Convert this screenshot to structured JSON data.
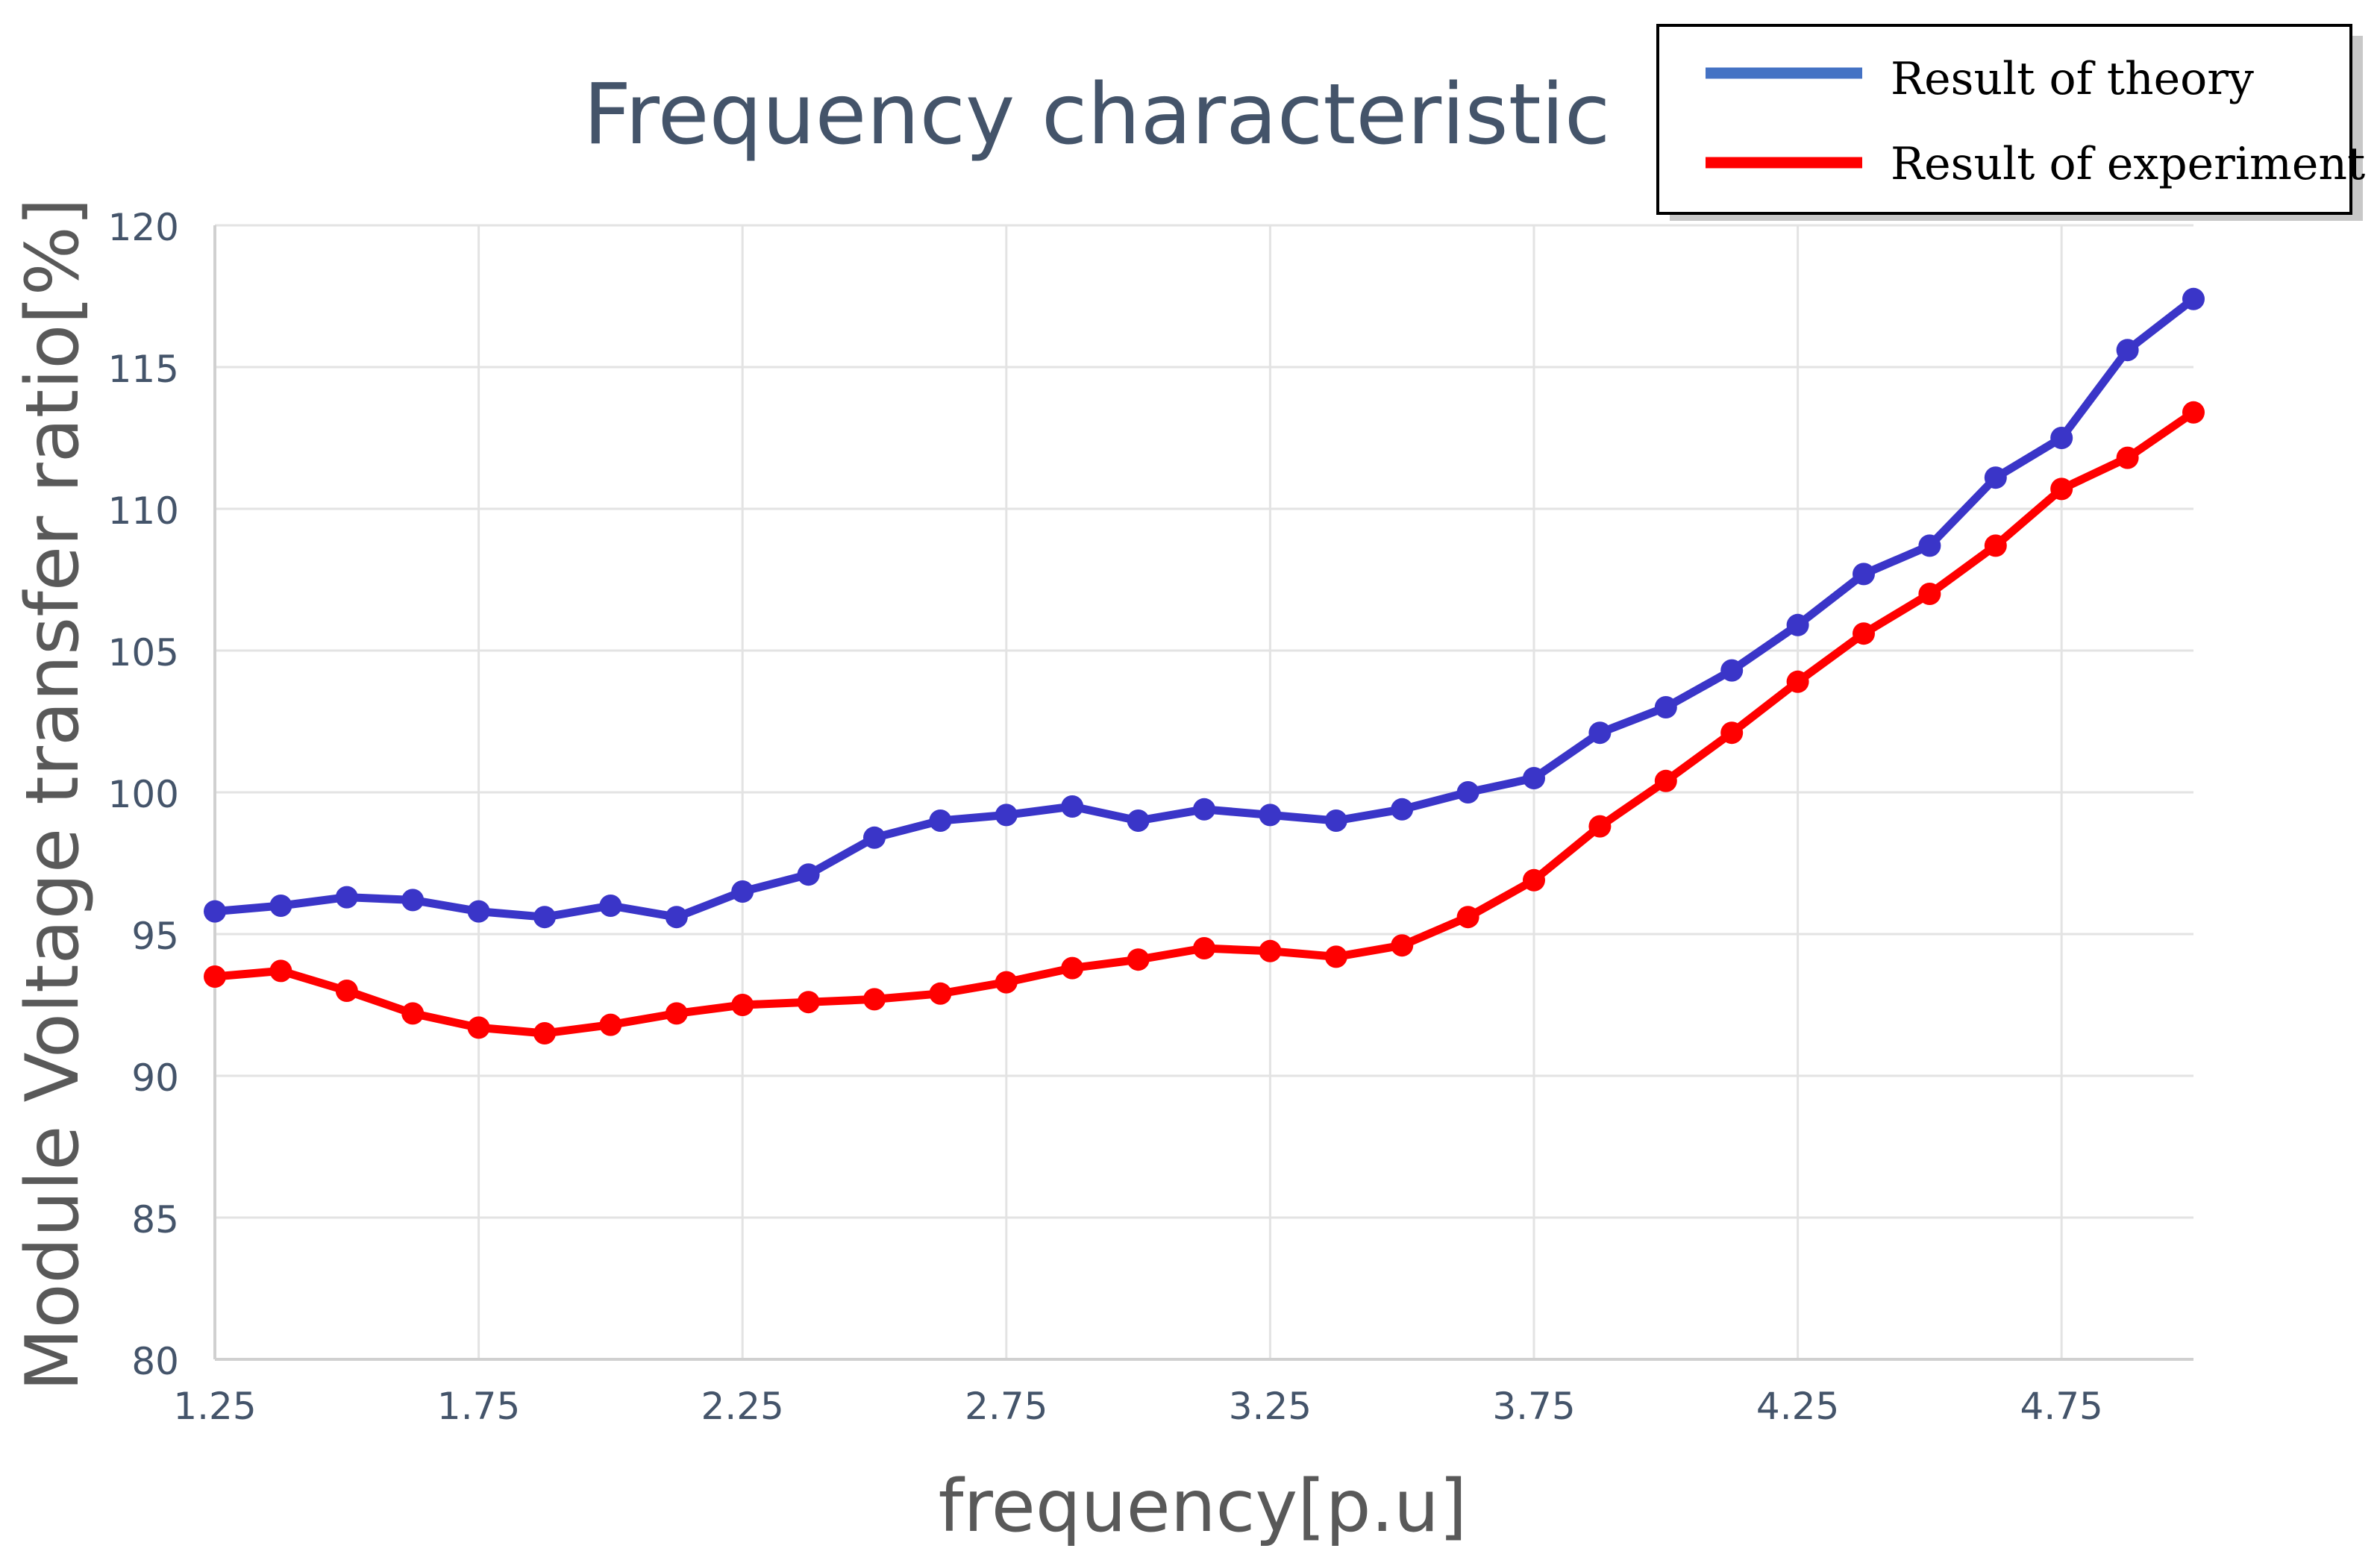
{
  "chart_data": {
    "type": "line",
    "title": "Frequency characteristic",
    "xlabel": "frequency[p.u]",
    "ylabel": "Module Voltage transfer ratio[%]",
    "xlim": [
      1.25,
      5.0
    ],
    "ylim": [
      80,
      120
    ],
    "x_ticks": [
      "1.25",
      "1.75",
      "2.25",
      "2.75",
      "3.25",
      "3.75",
      "4.25",
      "4.75"
    ],
    "y_ticks": [
      "80",
      "85",
      "90",
      "95",
      "100",
      "105",
      "110",
      "115",
      "120"
    ],
    "grid": true,
    "legend_position": "top-right",
    "x": [
      1.25,
      1.375,
      1.5,
      1.625,
      1.75,
      1.875,
      2.0,
      2.125,
      2.25,
      2.375,
      2.5,
      2.625,
      2.75,
      2.875,
      3.0,
      3.125,
      3.25,
      3.375,
      3.5,
      3.625,
      3.75,
      3.875,
      4.0,
      4.125,
      4.25,
      4.375,
      4.5,
      4.625,
      4.75,
      4.875,
      5.0
    ],
    "series": [
      {
        "name": "Result of theory",
        "color": "#3a35c8",
        "legend_color": "#4472c4",
        "values": [
          95.8,
          96.0,
          96.3,
          96.2,
          95.8,
          95.6,
          96.0,
          95.6,
          96.5,
          97.1,
          98.4,
          99.0,
          99.2,
          99.5,
          99.0,
          99.4,
          99.2,
          99.0,
          99.4,
          100.0,
          100.5,
          102.1,
          103.0,
          104.3,
          105.9,
          107.7,
          108.7,
          111.1,
          112.5,
          115.6,
          117.4
        ]
      },
      {
        "name": "Result of experiment",
        "color": "#ff0000",
        "legend_color": "#ff0000",
        "values": [
          93.5,
          93.7,
          93.0,
          92.2,
          91.7,
          91.5,
          91.8,
          92.2,
          92.5,
          92.6,
          92.7,
          92.9,
          93.3,
          93.8,
          94.1,
          94.5,
          94.4,
          94.2,
          94.6,
          95.6,
          96.9,
          98.8,
          100.4,
          102.1,
          103.9,
          105.6,
          107.0,
          108.7,
          110.7,
          111.8,
          113.4
        ]
      }
    ]
  }
}
